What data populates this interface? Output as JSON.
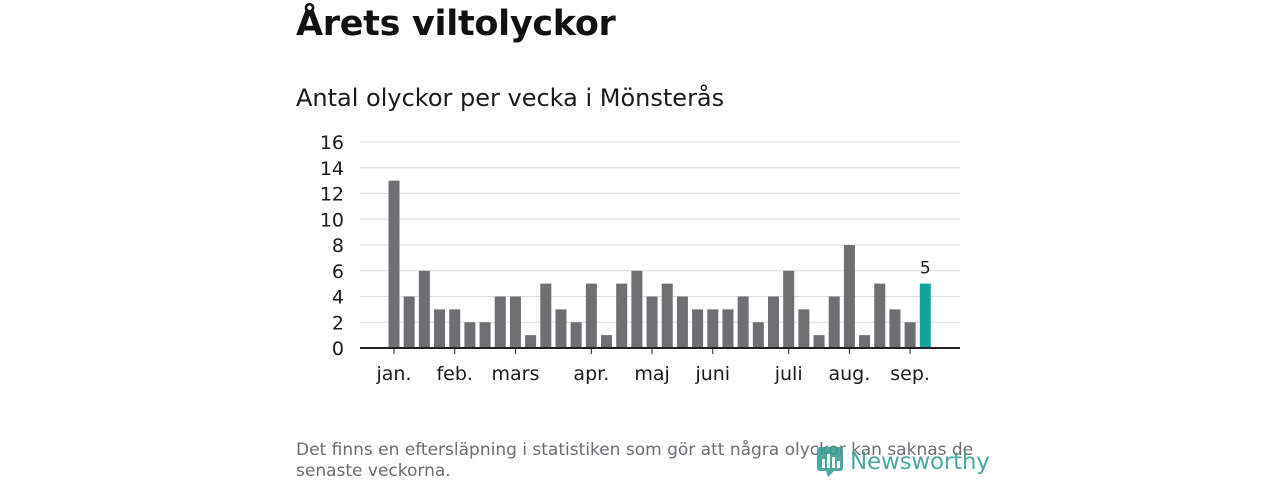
{
  "header": {
    "title": "Årets viltolyckor"
  },
  "chart_data": {
    "type": "bar",
    "title": "Antal olyckor per vecka i Mönsterås",
    "xlabel": "",
    "ylabel": "",
    "ylim": [
      0,
      16
    ],
    "y_ticks": [
      0,
      2,
      4,
      6,
      8,
      10,
      12,
      14,
      16
    ],
    "grid": true,
    "values": [
      13,
      4,
      6,
      3,
      3,
      2,
      2,
      4,
      4,
      1,
      5,
      3,
      2,
      5,
      1,
      5,
      6,
      4,
      5,
      4,
      3,
      3,
      3,
      4,
      2,
      4,
      6,
      3,
      1,
      4,
      8,
      1,
      5,
      3,
      2,
      5
    ],
    "x_ticks": [
      {
        "label": "jan.",
        "week": 1
      },
      {
        "label": "feb.",
        "week": 5
      },
      {
        "label": "mars",
        "week": 9
      },
      {
        "label": "apr.",
        "week": 14
      },
      {
        "label": "maj",
        "week": 18
      },
      {
        "label": "juni",
        "week": 22
      },
      {
        "label": "juli",
        "week": 27
      },
      {
        "label": "aug.",
        "week": 31
      },
      {
        "label": "sep.",
        "week": 35
      }
    ],
    "highlight_last": true,
    "highlight_label": "5",
    "colors": {
      "bar": "#6f6e73",
      "highlight": "#11a29a",
      "grid": "#dcdcdc",
      "axis": "#222222"
    }
  },
  "footer": {
    "note": "Det finns en eftersläpning i statistiken som gör att några olyckor kan saknas de senaste veckorna.",
    "brand": "Newsworthy"
  }
}
